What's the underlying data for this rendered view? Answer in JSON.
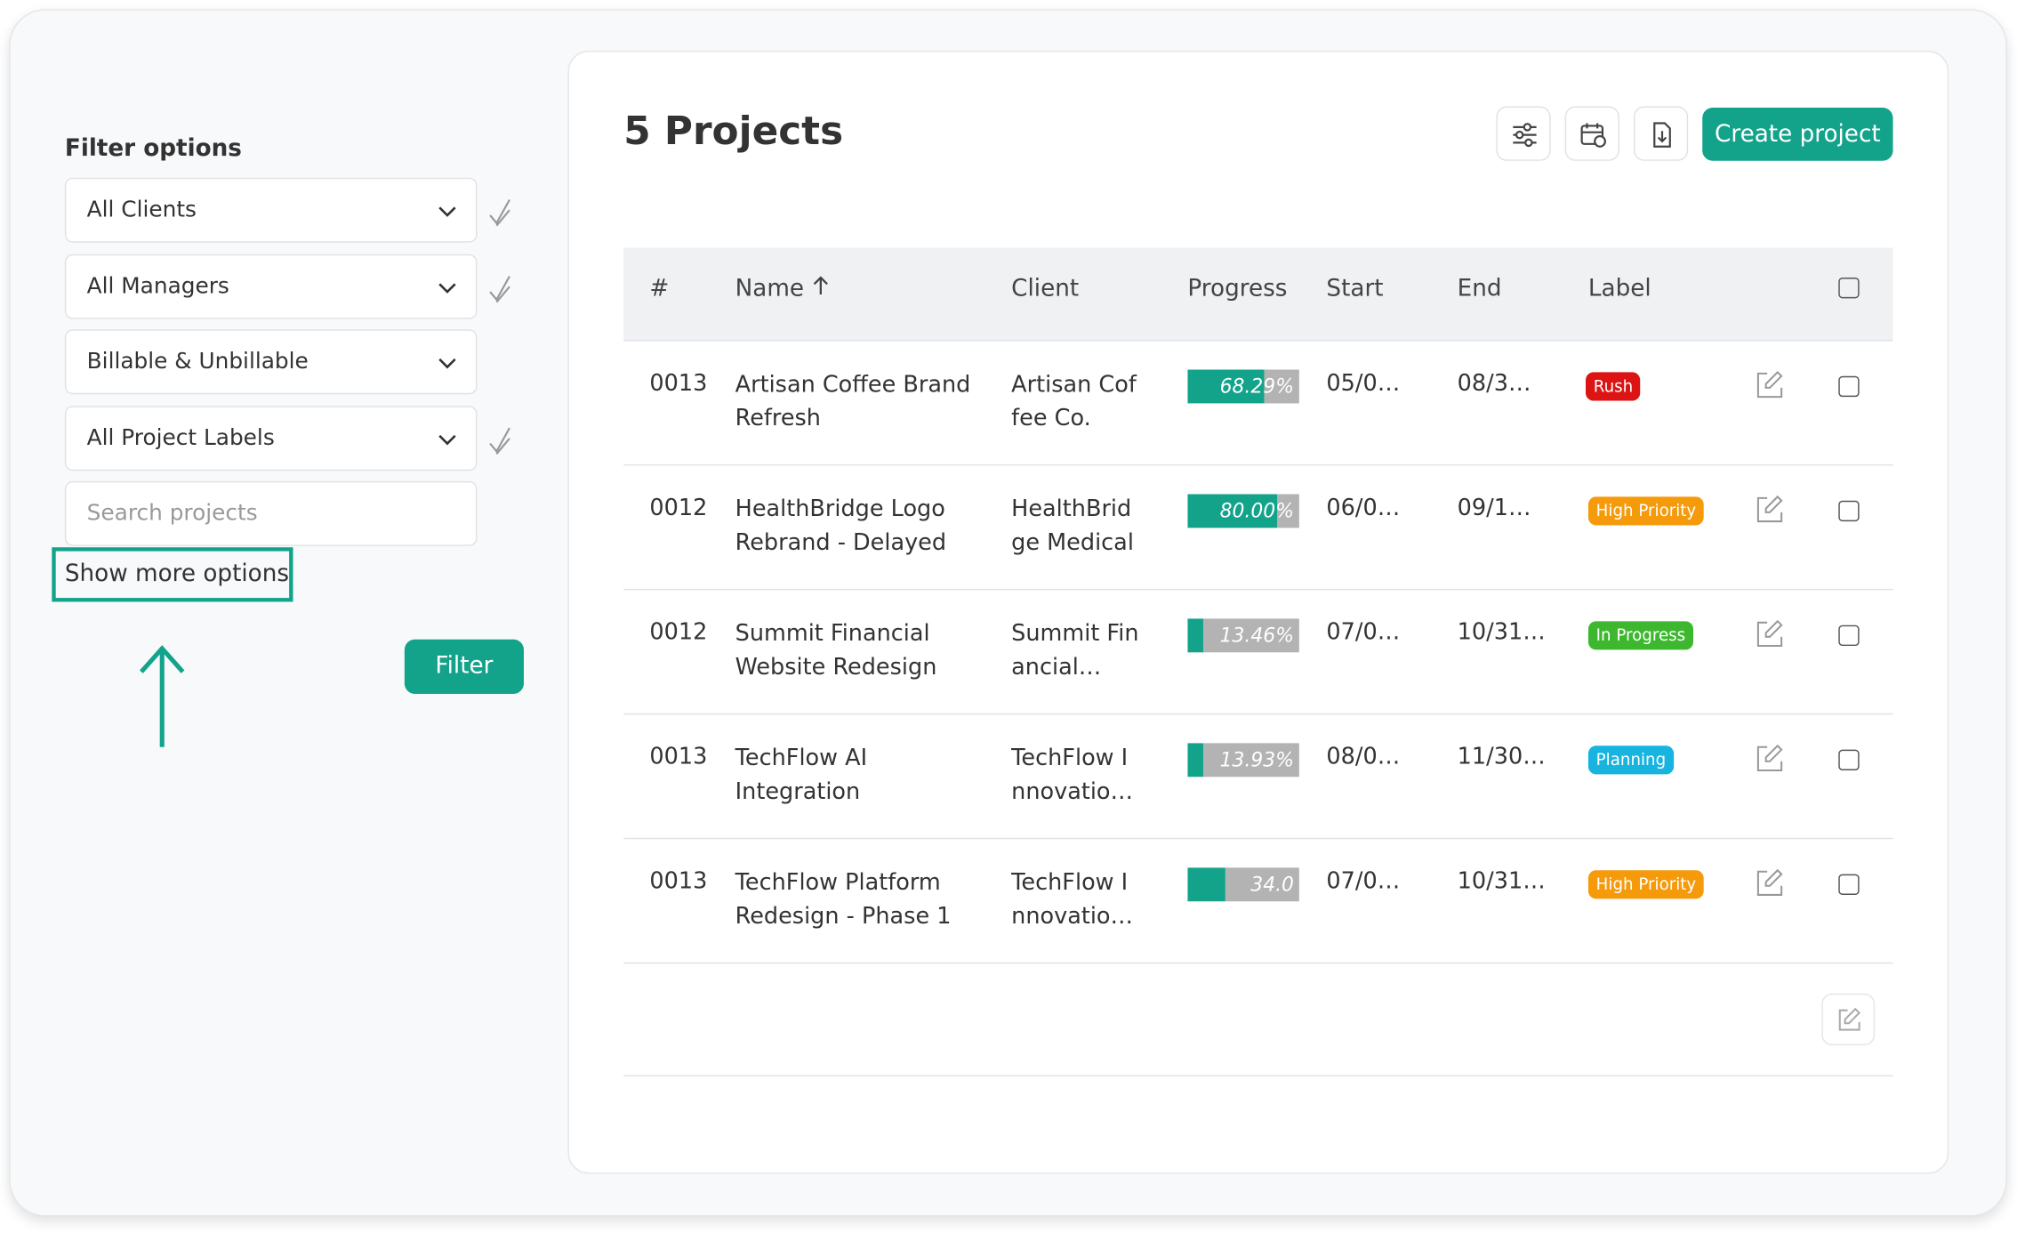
{
  "filters": {
    "title": "Filter options",
    "selects": [
      "All Clients",
      "All Managers",
      "Billable & Unbillable",
      "All Project Labels"
    ],
    "search_placeholder": "Search projects",
    "more": "Show more options",
    "button": "Filter"
  },
  "header": {
    "title": "5 Projects",
    "create": "Create project"
  },
  "table": {
    "columns": [
      "#",
      "Name",
      "Client",
      "Progress",
      "Start",
      "End",
      "Label"
    ],
    "rows": [
      {
        "id": "0013",
        "name": "Artisan Coffee Brand Refresh",
        "client": "Artisan Coffee Co.",
        "progress": {
          "value": 68.29,
          "label": "68.29%"
        },
        "start": "05/0…",
        "end": "08/3…",
        "label": "Rush",
        "label_color": "#dc1414"
      },
      {
        "id": "0012",
        "name": "HealthBridge Logo Rebrand - Delayed",
        "client": "HealthBridge Medical",
        "progress": {
          "value": 80.0,
          "label": "80.00%"
        },
        "start": "06/0…",
        "end": "09/1…",
        "label": "High Priority",
        "label_color": "#f59a0b"
      },
      {
        "id": "0012",
        "name": "Summit Financial Website Redesign",
        "client": "Summit Financial…",
        "progress": {
          "value": 13.46,
          "label": "13.46%"
        },
        "start": "07/0…",
        "end": "10/31…",
        "label": "In Progress",
        "label_color": "#3db82e"
      },
      {
        "id": "0013",
        "name": "TechFlow AI Integration",
        "client": "TechFlow Innovatio…",
        "progress": {
          "value": 13.93,
          "label": "13.93%"
        },
        "start": "08/0…",
        "end": "11/30…",
        "label": "Planning",
        "label_color": "#17b4e0"
      },
      {
        "id": "0013",
        "name": "TechFlow Platform Redesign - Phase 1",
        "client": "TechFlow Innovatio…",
        "progress": {
          "value": 34.0,
          "label": "34.0"
        },
        "start": "07/0…",
        "end": "10/31…",
        "label": "High Priority",
        "label_color": "#f59a0b"
      }
    ]
  }
}
